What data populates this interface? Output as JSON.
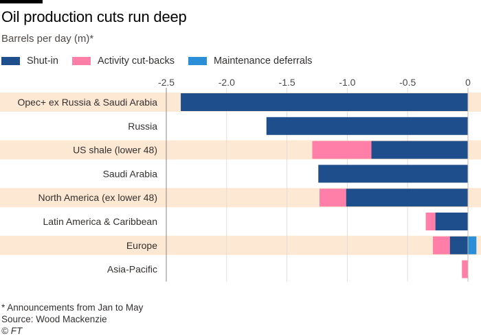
{
  "header": {
    "title": "Oil production cuts run deep",
    "subtitle": "Barrels per day (m)*"
  },
  "legend": [
    {
      "label": "Shut-in",
      "color": "#1f4e8c"
    },
    {
      "label": "Activity cut-backs",
      "color": "#ff7fa8"
    },
    {
      "label": "Maintenance deferrals",
      "color": "#2a8fd6"
    }
  ],
  "footer": {
    "note": "* Announcements from Jan to May",
    "source": "Source: Wood Mackenzie",
    "credit": "© FT"
  },
  "chart_data": {
    "type": "bar",
    "orientation": "horizontal",
    "stacked": true,
    "categories": [
      "Opec+ ex Russia & Saudi Arabia",
      "Russia",
      "US shale (lower 48)",
      "Saudi Arabia",
      "North America (ex lower 48)",
      "Latin America & Caribbean",
      "Europe",
      "Asia-Pacific"
    ],
    "series": [
      {
        "name": "Shut-in",
        "color": "#1f4e8c",
        "values": [
          -2.38,
          -1.67,
          -0.8,
          -1.24,
          -1.01,
          -0.27,
          -0.15,
          0.0
        ]
      },
      {
        "name": "Activity cut-backs",
        "color": "#ff7fa8",
        "values": [
          0.0,
          0.0,
          -0.49,
          0.0,
          -0.22,
          -0.08,
          -0.14,
          -0.05
        ]
      },
      {
        "name": "Maintenance deferrals",
        "color": "#2a8fd6",
        "values": [
          0.0,
          0.0,
          0.0,
          0.0,
          0.0,
          0.0,
          0.07,
          0.0
        ]
      }
    ],
    "xlim": [
      -2.5,
      0
    ],
    "xticks": [
      -2.5,
      -2.0,
      -1.5,
      -1.0,
      -0.5,
      0
    ],
    "xtick_labels": [
      "-2.5",
      "-2.0",
      "-1.5",
      "-1.0",
      "-0.5",
      "0"
    ],
    "band_color": "#fde8d4",
    "title": "Oil production cuts run deep",
    "xlabel": "",
    "ylabel": "",
    "grid": true,
    "legend_position": "top-left"
  }
}
